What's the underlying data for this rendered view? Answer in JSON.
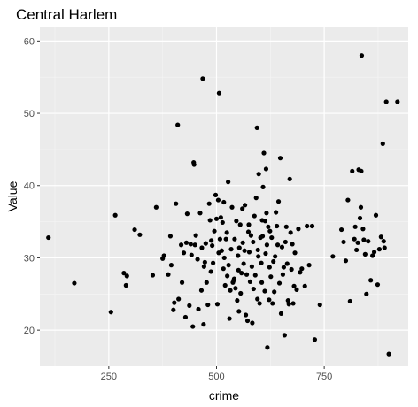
{
  "chart_data": {
    "type": "scatter",
    "title": "Central Harlem",
    "xlabel": "crime",
    "ylabel": "Value",
    "xlim": [
      90,
      945
    ],
    "ylim": [
      15,
      62
    ],
    "x_ticks": [
      250,
      500,
      750
    ],
    "y_ticks": [
      20,
      30,
      40,
      50,
      60
    ],
    "grid": true,
    "legend": "none",
    "colors": {
      "panel": "#ebebeb",
      "grid_major": "#ffffff",
      "grid_minor": "#f5f5f5",
      "point": "#000000",
      "tick_label": "#4d4d4d",
      "tick_mark": "#333333"
    },
    "points": [
      [
        110,
        32.8
      ],
      [
        170,
        26.5
      ],
      [
        255,
        22.5
      ],
      [
        265,
        35.9
      ],
      [
        285,
        27.9
      ],
      [
        290,
        26.2
      ],
      [
        292,
        27.5
      ],
      [
        310,
        33.9
      ],
      [
        322,
        33.2
      ],
      [
        352,
        27.6
      ],
      [
        360,
        37.0
      ],
      [
        375,
        29.9
      ],
      [
        378,
        30.3
      ],
      [
        388,
        27.7
      ],
      [
        393,
        33.0
      ],
      [
        395,
        29.0
      ],
      [
        400,
        22.8
      ],
      [
        402,
        23.8
      ],
      [
        406,
        37.5
      ],
      [
        410,
        48.4
      ],
      [
        412,
        24.3
      ],
      [
        418,
        31.8
      ],
      [
        420,
        26.6
      ],
      [
        424,
        30.7
      ],
      [
        428,
        21.8
      ],
      [
        430,
        32.1
      ],
      [
        432,
        36.1
      ],
      [
        437,
        23.4
      ],
      [
        440,
        31.9
      ],
      [
        442,
        30.4
      ],
      [
        445,
        20.5
      ],
      [
        447,
        43.2
      ],
      [
        448,
        42.9
      ],
      [
        450,
        31.8
      ],
      [
        452,
        33.1
      ],
      [
        456,
        29.8
      ],
      [
        458,
        22.9
      ],
      [
        462,
        36.2
      ],
      [
        465,
        25.5
      ],
      [
        466,
        31.4
      ],
      [
        468,
        54.8
      ],
      [
        470,
        20.8
      ],
      [
        471,
        28.8
      ],
      [
        473,
        29.4
      ],
      [
        475,
        32.0
      ],
      [
        477,
        26.6
      ],
      [
        480,
        23.5
      ],
      [
        483,
        37.5
      ],
      [
        485,
        35.2
      ],
      [
        487,
        28.1
      ],
      [
        488,
        32.4
      ],
      [
        490,
        31.7
      ],
      [
        492,
        29.3
      ],
      [
        495,
        33.7
      ],
      [
        498,
        38.7
      ],
      [
        500,
        35.4
      ],
      [
        502,
        23.6
      ],
      [
        504,
        38.0
      ],
      [
        505,
        30.7
      ],
      [
        506,
        52.8
      ],
      [
        508,
        32.6
      ],
      [
        510,
        35.6
      ],
      [
        512,
        31.0
      ],
      [
        514,
        34.9
      ],
      [
        516,
        28.5
      ],
      [
        517,
        37.7
      ],
      [
        518,
        30.0
      ],
      [
        520,
        26.2
      ],
      [
        522,
        32.6
      ],
      [
        524,
        33.5
      ],
      [
        525,
        27.5
      ],
      [
        527,
        40.5
      ],
      [
        528,
        29.0
      ],
      [
        530,
        21.6
      ],
      [
        532,
        25.5
      ],
      [
        534,
        31.2
      ],
      [
        536,
        37.0
      ],
      [
        538,
        26.6
      ],
      [
        540,
        26.9
      ],
      [
        541,
        27.1
      ],
      [
        542,
        32.6
      ],
      [
        544,
        25.8
      ],
      [
        546,
        35.1
      ],
      [
        548,
        24.1
      ],
      [
        550,
        30.3
      ],
      [
        551,
        28.3
      ],
      [
        552,
        22.6
      ],
      [
        553,
        31.4
      ],
      [
        555,
        34.6
      ],
      [
        556,
        25.1
      ],
      [
        558,
        27.9
      ],
      [
        560,
        36.8
      ],
      [
        561,
        32.1
      ],
      [
        563,
        29.2
      ],
      [
        565,
        31.0
      ],
      [
        566,
        37.3
      ],
      [
        568,
        22.1
      ],
      [
        570,
        27.7
      ],
      [
        572,
        21.3
      ],
      [
        574,
        33.6
      ],
      [
        575,
        34.6
      ],
      [
        576,
        30.8
      ],
      [
        578,
        26.7
      ],
      [
        580,
        33.1
      ],
      [
        582,
        28.8
      ],
      [
        583,
        21.0
      ],
      [
        585,
        32.2
      ],
      [
        586,
        25.7
      ],
      [
        588,
        35.8
      ],
      [
        590,
        27.6
      ],
      [
        592,
        38.3
      ],
      [
        594,
        48.0
      ],
      [
        595,
        24.3
      ],
      [
        596,
        31.1
      ],
      [
        597,
        30.2
      ],
      [
        598,
        41.6
      ],
      [
        600,
        23.7
      ],
      [
        602,
        32.8
      ],
      [
        604,
        29.3
      ],
      [
        605,
        26.6
      ],
      [
        606,
        35.2
      ],
      [
        607,
        33.0
      ],
      [
        608,
        39.8
      ],
      [
        610,
        44.5
      ],
      [
        612,
        25.4
      ],
      [
        613,
        35.1
      ],
      [
        614,
        30.6
      ],
      [
        615,
        42.3
      ],
      [
        616,
        36.2
      ],
      [
        617,
        31.8
      ],
      [
        618,
        17.6
      ],
      [
        620,
        34.3
      ],
      [
        622,
        24.2
      ],
      [
        623,
        28.7
      ],
      [
        624,
        33.7
      ],
      [
        626,
        27.4
      ],
      [
        628,
        32.8
      ],
      [
        630,
        23.7
      ],
      [
        632,
        29.5
      ],
      [
        634,
        25.3
      ],
      [
        636,
        30.2
      ],
      [
        638,
        36.3
      ],
      [
        640,
        34.4
      ],
      [
        642,
        31.8
      ],
      [
        644,
        37.8
      ],
      [
        646,
        26.5
      ],
      [
        648,
        43.8
      ],
      [
        650,
        22.3
      ],
      [
        652,
        31.5
      ],
      [
        654,
        27.7
      ],
      [
        656,
        28.7
      ],
      [
        658,
        19.3
      ],
      [
        660,
        32.2
      ],
      [
        662,
        34.3
      ],
      [
        664,
        29.2
      ],
      [
        666,
        24.1
      ],
      [
        668,
        23.6
      ],
      [
        670,
        40.9
      ],
      [
        672,
        33.5
      ],
      [
        674,
        28.4
      ],
      [
        676,
        31.9
      ],
      [
        678,
        23.7
      ],
      [
        680,
        26.1
      ],
      [
        682,
        30.7
      ],
      [
        686,
        25.6
      ],
      [
        690,
        34.0
      ],
      [
        694,
        28.0
      ],
      [
        698,
        28.5
      ],
      [
        705,
        26.1
      ],
      [
        710,
        34.4
      ],
      [
        715,
        29.0
      ],
      [
        722,
        34.4
      ],
      [
        728,
        18.7
      ],
      [
        740,
        23.5
      ],
      [
        770,
        30.2
      ],
      [
        790,
        33.9
      ],
      [
        795,
        32.2
      ],
      [
        800,
        29.6
      ],
      [
        805,
        38.0
      ],
      [
        810,
        24.0
      ],
      [
        815,
        42.0
      ],
      [
        820,
        32.6
      ],
      [
        822,
        34.3
      ],
      [
        825,
        31.1
      ],
      [
        828,
        32.1
      ],
      [
        830,
        42.2
      ],
      [
        833,
        35.5
      ],
      [
        835,
        37.0
      ],
      [
        836,
        42.0
      ],
      [
        837,
        58.0
      ],
      [
        840,
        34.0
      ],
      [
        842,
        32.5
      ],
      [
        845,
        30.5
      ],
      [
        848,
        25.0
      ],
      [
        852,
        32.3
      ],
      [
        858,
        26.9
      ],
      [
        862,
        30.3
      ],
      [
        866,
        30.8
      ],
      [
        870,
        35.9
      ],
      [
        874,
        26.3
      ],
      [
        878,
        31.2
      ],
      [
        882,
        32.9
      ],
      [
        886,
        45.8
      ],
      [
        888,
        32.3
      ],
      [
        890,
        31.4
      ],
      [
        894,
        51.6
      ],
      [
        900,
        16.7
      ],
      [
        920,
        51.6
      ]
    ]
  }
}
